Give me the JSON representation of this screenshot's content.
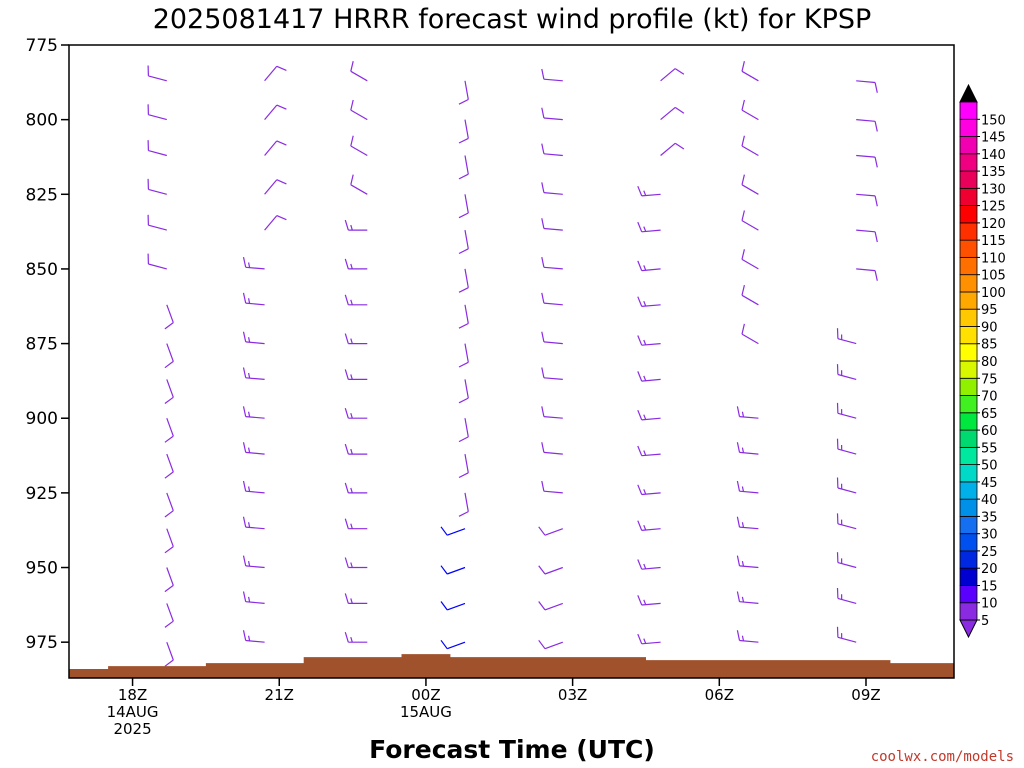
{
  "chart_data": {
    "type": "wind-barb-profile",
    "title": "2025081417 HRRR forecast wind profile (kt) for KPSP",
    "xlabel": "Forecast Time (UTC)",
    "credit": "coolwx.com/models",
    "x_hours_range": [
      -1.3,
      16.8
    ],
    "y_pressure_range": [
      775,
      987
    ],
    "y_axis_inverted": true,
    "y_ticks": [
      "775",
      "800",
      "825",
      "850",
      "875",
      "900",
      "925",
      "950",
      "975"
    ],
    "x_ticks": [
      {
        "hour": 0,
        "lines": [
          "18Z",
          "14AUG",
          "2025"
        ]
      },
      {
        "hour": 3,
        "lines": [
          "21Z"
        ]
      },
      {
        "hour": 6,
        "lines": [
          "00Z",
          "15AUG"
        ]
      },
      {
        "hour": 9,
        "lines": [
          "03Z"
        ]
      },
      {
        "hour": 12,
        "lines": [
          "06Z"
        ]
      },
      {
        "hour": 15,
        "lines": [
          "09Z"
        ]
      }
    ],
    "terrain_color": "#a0522d",
    "terrain": [
      {
        "hour": -1.3,
        "p": 984
      },
      {
        "hour": -0.5,
        "p": 984
      },
      {
        "hour": -0.5,
        "p": 983
      },
      {
        "hour": 1.5,
        "p": 983
      },
      {
        "hour": 1.5,
        "p": 982
      },
      {
        "hour": 3.5,
        "p": 982
      },
      {
        "hour": 3.5,
        "p": 980
      },
      {
        "hour": 5.5,
        "p": 980
      },
      {
        "hour": 5.5,
        "p": 979
      },
      {
        "hour": 6.5,
        "p": 979
      },
      {
        "hour": 6.5,
        "p": 980
      },
      {
        "hour": 10.5,
        "p": 980
      },
      {
        "hour": 10.5,
        "p": 981
      },
      {
        "hour": 15.5,
        "p": 981
      },
      {
        "hour": 15.5,
        "p": 982
      },
      {
        "hour": 16.8,
        "p": 982
      }
    ],
    "colorbar": {
      "values": [
        5,
        10,
        15,
        20,
        25,
        30,
        35,
        40,
        45,
        50,
        55,
        60,
        65,
        70,
        75,
        80,
        85,
        90,
        95,
        100,
        105,
        110,
        115,
        120,
        125,
        130,
        135,
        140,
        145,
        150
      ],
      "colors": [
        "#8a2be2",
        "#5a00ff",
        "#0000d0",
        "#0028e0",
        "#0050f0",
        "#1470f0",
        "#0090e8",
        "#00b0e8",
        "#00d8c8",
        "#00e8a0",
        "#00d870",
        "#00e840",
        "#40f020",
        "#90f000",
        "#d8f800",
        "#ffff00",
        "#ffe000",
        "#ffc800",
        "#ffa800",
        "#ff9000",
        "#ff7000",
        "#ff5000",
        "#ff3000",
        "#ff0000",
        "#f00030",
        "#e8005a",
        "#f00080",
        "#f000b0",
        "#ff00e0",
        "#ff00ff"
      ],
      "min_arrow_color": "#8a2be2",
      "max_arrow_color": "#000000"
    },
    "barb_color_default": "#8a2be2",
    "barb_color_strong": "#0000ff",
    "levels": [
      775,
      787,
      800,
      812,
      825,
      837,
      850,
      862,
      875,
      887,
      900,
      912,
      925,
      937,
      950,
      962,
      975,
      987
    ],
    "columns": [
      {
        "hour": -1.3,
        "dir": 320,
        "speed": 10,
        "top_p": 875
      },
      {
        "hour": 0.7,
        "dir": 285,
        "speed": 10,
        "top_p": 787,
        "lower_dir": 160,
        "lower_speed": 10,
        "switch_p": 862
      },
      {
        "hour": 2.7,
        "dir": 40,
        "speed": 10,
        "top_p": 787,
        "lower_dir": 275,
        "lower_speed": 15,
        "switch_p": 850
      },
      {
        "hour": 4.8,
        "dir": 300,
        "speed": 10,
        "top_p": 787,
        "lower_dir": 270,
        "lower_speed": 15,
        "switch_p": 837
      },
      {
        "hour": 6.8,
        "dir": 170,
        "speed": 10,
        "top_p": 787,
        "lower_dir": 250,
        "lower_speed": 10,
        "switch_p": 937,
        "strong_below_p": 937
      },
      {
        "hour": 8.8,
        "dir": 275,
        "speed": 10,
        "top_p": 775,
        "lower_dir": 250,
        "lower_speed": 10,
        "switch_p": 937
      },
      {
        "hour": 10.8,
        "dir": 50,
        "speed": 10,
        "top_p": 787,
        "lower_dir": 265,
        "lower_speed": 15,
        "switch_p": 825
      },
      {
        "hour": 12.8,
        "dir": 300,
        "speed": 10,
        "top_p": 787,
        "lower_dir": 275,
        "lower_speed": 15,
        "switch_p": 887,
        "gap_p": [
          875,
          887
        ]
      },
      {
        "hour": 14.8,
        "dir": 95,
        "speed": 10,
        "top_p": 787,
        "lower_dir": 285,
        "lower_speed": 15,
        "switch_p": 862,
        "gap_p": [
          850,
          862
        ]
      },
      {
        "hour": 16.8,
        "dir": 40,
        "speed": 10,
        "top_p": 787
      }
    ]
  }
}
